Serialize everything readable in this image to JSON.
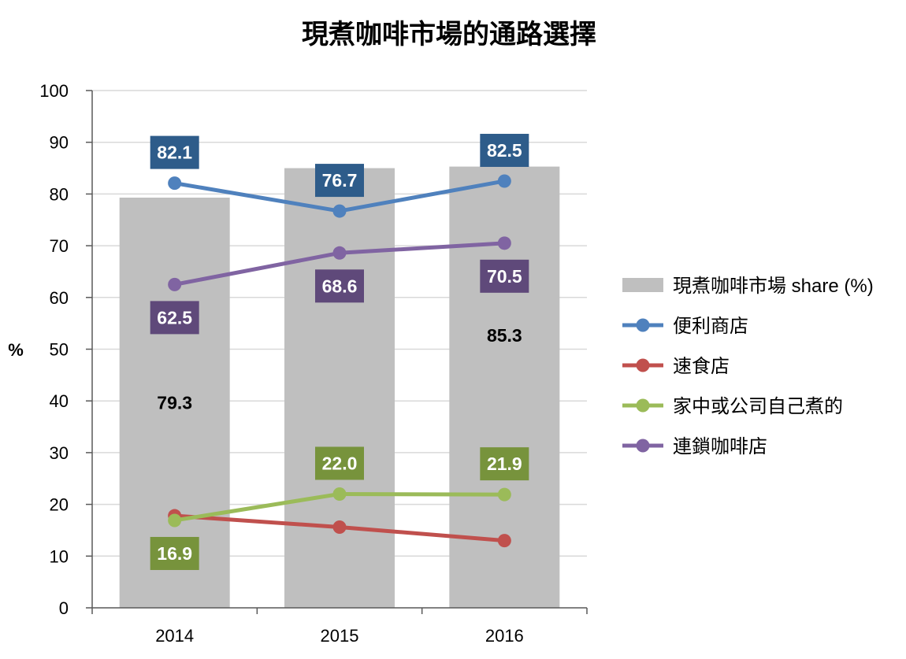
{
  "chart_data": {
    "type": "bar",
    "title": "現煮咖啡市場的通路選擇",
    "ylabel": "%",
    "ylim": [
      0,
      100
    ],
    "yticks": [
      "0",
      "10",
      "20",
      "30",
      "40",
      "50",
      "60",
      "70",
      "80",
      "90",
      "100"
    ],
    "categories": [
      "2014",
      "2015",
      "2016"
    ],
    "grid": true,
    "legend_position": "right",
    "bars": {
      "name": "現煮咖啡市場 share (%)",
      "values": [
        79.3,
        85.0,
        85.3
      ],
      "labels": [
        "79.3",
        "",
        "85.3"
      ],
      "color": "#bfbfbf"
    },
    "series": [
      {
        "name": "便利商店",
        "values": [
          82.1,
          76.7,
          82.5
        ],
        "labels": [
          "82.1",
          "76.7",
          "82.5"
        ],
        "color": "#4f81bd",
        "label_bg": "#2e5c8a",
        "label_pos": [
          "above",
          "above",
          "above"
        ]
      },
      {
        "name": "速食店",
        "values": [
          17.8,
          15.6,
          13.0
        ],
        "labels": [
          "",
          "",
          ""
        ],
        "color": "#c0504d",
        "label_bg": "#c0504d",
        "label_pos": [
          "above",
          "above",
          "above"
        ]
      },
      {
        "name": "家中或公司自己煮的",
        "values": [
          16.9,
          22.0,
          21.9
        ],
        "labels": [
          "16.9",
          "22.0",
          "21.9"
        ],
        "color": "#9bbb59",
        "label_bg": "#77933c",
        "label_pos": [
          "below",
          "above",
          "above"
        ]
      },
      {
        "name": "連鎖咖啡店",
        "values": [
          62.5,
          68.6,
          70.5
        ],
        "labels": [
          "62.5",
          "68.6",
          "70.5"
        ],
        "color": "#8064a2",
        "label_bg": "#5f497a",
        "label_pos": [
          "below",
          "below",
          "below"
        ]
      }
    ]
  }
}
